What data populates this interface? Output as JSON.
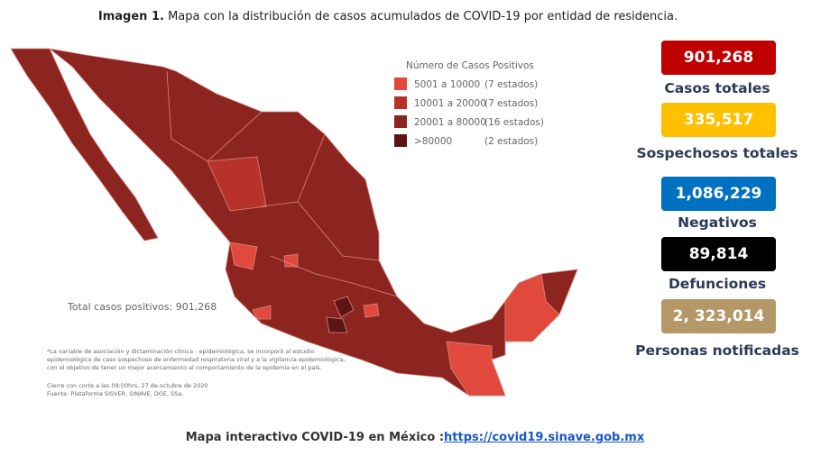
{
  "header": {
    "label": "Imagen 1.",
    "title": "Mapa con la distribución de casos acumulados de COVID-19 por entidad de residencia."
  },
  "map": {
    "legend_title": "Número de Casos Positivos",
    "legend": [
      {
        "range": "5001 a 10000",
        "count": "(7 estados)",
        "color": "#e0493c"
      },
      {
        "range": "10001 a 20000",
        "count": "(7 estados)",
        "color": "#b8322a"
      },
      {
        "range": "20001 a 80000",
        "count": "(16 estados)",
        "color": "#8c2420"
      },
      {
        "range": ">80000",
        "count": "(2 estados)",
        "color": "#5c1513"
      }
    ],
    "total": "Total casos positivos: 901,268",
    "notes": [
      "*La variable de asociación y dictaminación clínica - epidemiológica, se incorporó al estudio",
      "epidemiológico de caso sospechoso de enfermedad respiratoria viral y a la vigilancia epidemiológica,",
      "con el objetivo de tener un mejor acercamiento al comportamiento de la epidemia en el país.",
      "Cierre con corte a las 09:00hrs, 27 de octubre de 2020",
      "Fuente: Plataforma SISVER, SINAVE, DGE, SSa."
    ]
  },
  "stats": [
    {
      "value": "901,268",
      "label": "Casos totales",
      "color": "#c00000"
    },
    {
      "value": "335,517",
      "label": "Sospechosos totales",
      "color": "#ffc000"
    },
    {
      "value": "1,086,229",
      "label": "Negativos",
      "color": "#0070c0"
    },
    {
      "value": "89,814",
      "label": "Defunciones",
      "color": "#000000"
    },
    {
      "value": "2, 323,014",
      "label": "Personas notificadas",
      "color": "#b49868"
    }
  ],
  "footer": {
    "text": "Mapa interactivo COVID-19 en México :",
    "link": "https://covid19.sinave.gob.mx"
  }
}
